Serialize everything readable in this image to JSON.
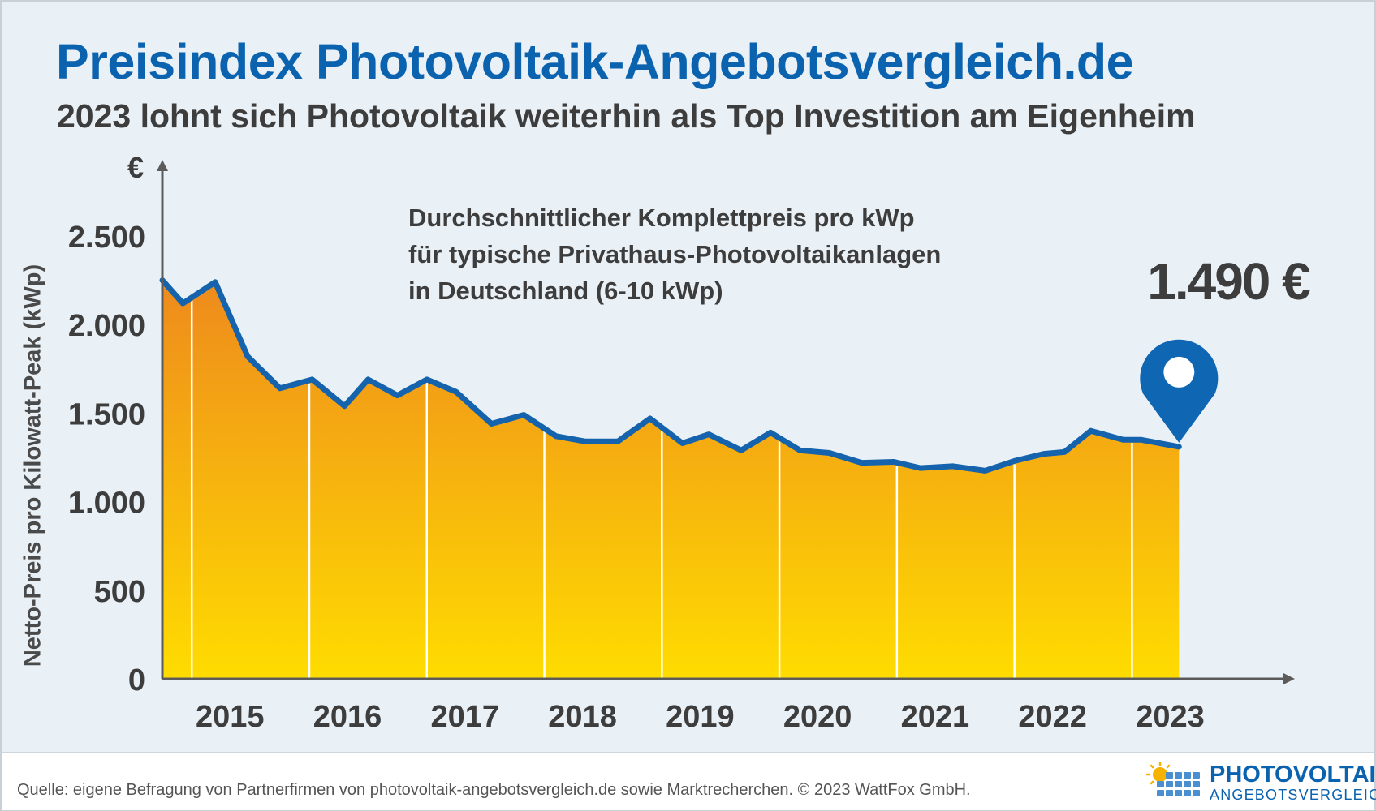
{
  "header": {
    "title": "Preisindex Photovoltaik-Angebotsvergleich.de",
    "subtitle": "2023 lohnt sich Photovoltaik weiterhin als Top Investition am Eigenheim"
  },
  "chart_data": {
    "type": "area",
    "ylabel": "Netto-Preis pro Kilowatt-Peak (kWp)",
    "yunit": "€",
    "ylim": [
      0,
      2500
    ],
    "yticks": [
      0,
      500,
      1000,
      1500,
      2000,
      2500
    ],
    "ytick_labels": [
      "0",
      "500",
      "1.000",
      "1.500",
      "2.000",
      "2.500"
    ],
    "xlim": [
      0,
      36
    ],
    "year_labels": [
      "2015",
      "2016",
      "2017",
      "2018",
      "2019",
      "2020",
      "2021",
      "2022",
      "2023"
    ],
    "year_label_positions": [
      2.3,
      6.3,
      10.3,
      14.3,
      18.3,
      22.3,
      26.3,
      30.3,
      34.3
    ],
    "year_dividers": [
      1,
      5,
      9,
      13,
      17,
      21,
      25,
      29,
      33
    ],
    "annotation": [
      "Durchschnittlicher Komplettpreis pro kWp",
      "für typische Privathaus-Photovoltaikanlagen",
      "in Deutschland (6-10 kWp)"
    ],
    "callout": "1.490 €",
    "series": [
      {
        "name": "Durchschnittlicher Komplettpreis pro kWp",
        "x": [
          0,
          0.7,
          1.8,
          2.9,
          4.0,
          5.1,
          6.2,
          7.0,
          8.0,
          9.0,
          10.0,
          11.2,
          12.3,
          13.4,
          14.4,
          15.5,
          16.6,
          17.7,
          18.6,
          19.7,
          20.7,
          21.7,
          22.7,
          23.8,
          24.9,
          25.8,
          26.9,
          28.0,
          29.0,
          30.0,
          30.7,
          31.6,
          32.7,
          33.3,
          34.6
        ],
        "values": [
          2250,
          2120,
          2240,
          1820,
          1640,
          1690,
          1540,
          1690,
          1600,
          1690,
          1620,
          1440,
          1490,
          1370,
          1340,
          1340,
          1470,
          1330,
          1380,
          1290,
          1390,
          1290,
          1275,
          1220,
          1225,
          1190,
          1200,
          1175,
          1230,
          1270,
          1280,
          1400,
          1350,
          1350,
          1310
        ]
      }
    ],
    "colors": {
      "line": "#1563ad",
      "fill_top": "#ee8a1d",
      "fill_bottom": "#ffdc00",
      "marker": "#0f66b2",
      "axis": "#5b5b5b",
      "text": "#3d3d3d"
    }
  },
  "footer": {
    "source": "Quelle: eigene Befragung von Partnerfirmen von photovoltaik-angebotsvergleich.de sowie Marktrecherchen. © 2023 WattFox GmbH.",
    "logo_line1": "PHOTOVOLTAIK",
    "logo_line2": "ANGEBOTSVERGLEICH"
  }
}
